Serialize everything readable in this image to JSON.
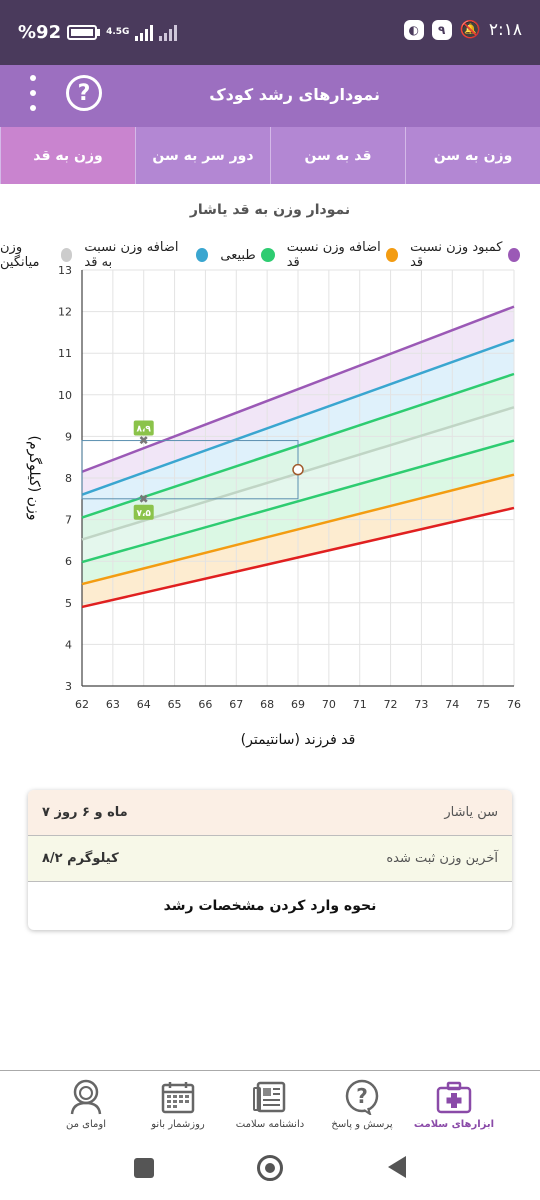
{
  "status_bar": {
    "battery": "92",
    "battery_prefix": "%",
    "network": "4.5G",
    "time": "۲:۱۸",
    "notif_badge": "۹"
  },
  "app_bar": {
    "title": "نمودارهای رشد کودک",
    "help": "?"
  },
  "tabs": [
    {
      "label": "وزن به سن",
      "active": false
    },
    {
      "label": "قد به سن",
      "active": false
    },
    {
      "label": "دور سر به سن",
      "active": false
    },
    {
      "label": "وزن به قد",
      "active": true
    }
  ],
  "chart_title": "نمودار وزن به قد یاشار",
  "legend": [
    {
      "label": "کمبود وزن نسبت قد",
      "color": "#9b59b6"
    },
    {
      "label": "اضافه وزن نسبت قد",
      "color": "#f39c12"
    },
    {
      "label": "طبیعی",
      "color": "#2ecc71"
    },
    {
      "label": "اضافه وزن نسبت به قد",
      "color": "#3aa6d0"
    },
    {
      "label": "وزن میانگین",
      "color": "#cccccc"
    }
  ],
  "chart_data": {
    "type": "line",
    "xlabel": "قد فرزند (سانتیمتر)",
    "ylabel": "وزن (کیلوگرم)",
    "xlim": [
      62,
      76
    ],
    "ylim": [
      3,
      13
    ],
    "x_ticks": [
      62,
      63,
      64,
      65,
      66,
      67,
      68,
      69,
      70,
      71,
      72,
      73,
      74,
      75,
      76
    ],
    "y_ticks": [
      3,
      4,
      5,
      6,
      7,
      8,
      9,
      10,
      11,
      12,
      13
    ],
    "series": [
      {
        "color": "#e02020",
        "start": 4.9,
        "end": 7.28,
        "fill": "#fcd4d4"
      },
      {
        "color": "#f39c12",
        "start": 5.45,
        "end": 8.08,
        "fill": "#fde9c8"
      },
      {
        "color": "#2ecc71",
        "start": 5.98,
        "end": 8.9,
        "fill": "#d5f7df"
      },
      {
        "color": "#c0d5c5",
        "start": 6.52,
        "end": 9.7,
        "fill": "#dff6ea"
      },
      {
        "color": "#2ecc71",
        "start": 7.05,
        "end": 10.5,
        "fill": "#d7f5e3"
      },
      {
        "color": "#3aa6d0",
        "start": 7.6,
        "end": 11.32,
        "fill": "#d9eefa"
      },
      {
        "color": "#9b59b6",
        "start": 8.15,
        "end": 12.12,
        "fill": "#efe2f6"
      }
    ],
    "markers": [
      {
        "x": 64,
        "y": 8.9,
        "label": "۸،۹"
      },
      {
        "x": 64,
        "y": 7.5,
        "label": "۷،۵"
      }
    ],
    "current_point": {
      "x": 69,
      "y": 8.2
    },
    "range_box": {
      "x0": 62,
      "x1": 69,
      "y0": 7.5,
      "y1": 8.9
    }
  },
  "info": {
    "age_label": "سن یاشار",
    "age_value": "۷ ماه و ۶ روز",
    "weight_label": "آخرین وزن ثبت شده",
    "weight_value": "۸/۲ کیلوگرم",
    "help_link": "نحوه وارد کردن مشخصات رشد"
  },
  "bottom_nav": [
    {
      "label": "ابزارهای سلامت",
      "icon": "medical-kit-icon",
      "active": true
    },
    {
      "label": "پرسش و پاسخ",
      "icon": "question-bubble-icon",
      "active": false
    },
    {
      "label": "دانشنامه سلامت",
      "icon": "encyclopedia-icon",
      "active": false
    },
    {
      "label": "روزشمار بانو",
      "icon": "calendar-icon",
      "active": false
    },
    {
      "label": "اومای من",
      "icon": "profile-icon",
      "active": false
    }
  ]
}
